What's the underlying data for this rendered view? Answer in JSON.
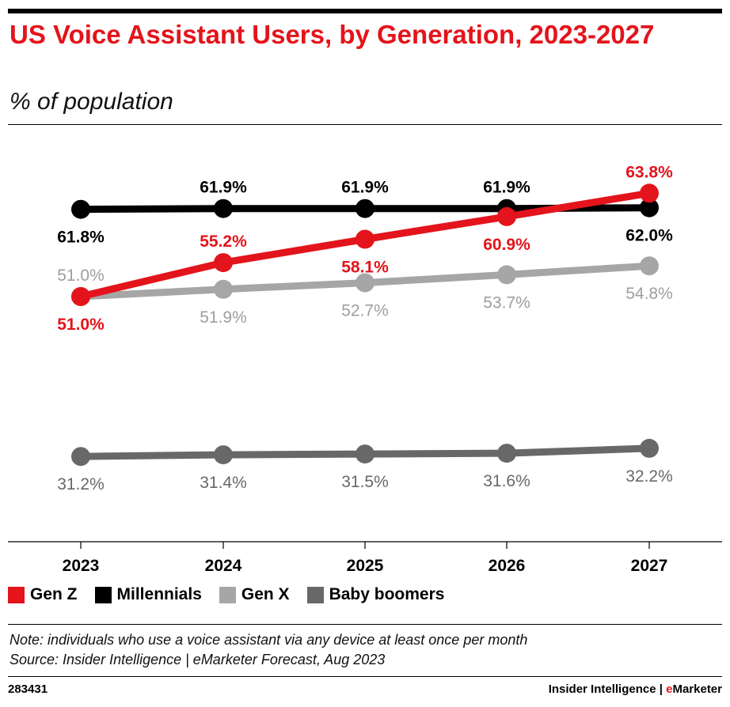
{
  "header": {
    "title": "US Voice Assistant Users, by Generation, 2023-2027",
    "subtitle": "% of population"
  },
  "chart_data": {
    "type": "line",
    "title": "US Voice Assistant Users, by Generation, 2023-2027",
    "subtitle": "% of population",
    "categories": [
      "2023",
      "2024",
      "2025",
      "2026",
      "2027"
    ],
    "ylim": [
      25,
      68
    ],
    "grid": false,
    "legend_position": "bottom-left",
    "series": [
      {
        "name": "Gen Z",
        "color": "#e3141b",
        "values": [
          51.0,
          55.2,
          58.1,
          60.9,
          63.8
        ],
        "labels": [
          "51.0%",
          "55.2%",
          "58.1%",
          "60.9%",
          "63.8%"
        ]
      },
      {
        "name": "Millennials",
        "color": "#000000",
        "values": [
          61.8,
          61.9,
          61.9,
          61.9,
          62.0
        ],
        "labels": [
          "61.8%",
          "61.9%",
          "61.9%",
          "61.9%",
          "62.0%"
        ]
      },
      {
        "name": "Gen X",
        "color": "#a6a6a6",
        "values": [
          51.0,
          51.9,
          52.7,
          53.7,
          54.8
        ],
        "labels": [
          "51.0%",
          "51.9%",
          "52.7%",
          "53.7%",
          "54.8%"
        ]
      },
      {
        "name": "Baby boomers",
        "color": "#686868",
        "values": [
          31.2,
          31.4,
          31.5,
          31.6,
          32.2
        ],
        "labels": [
          "31.2%",
          "31.4%",
          "31.5%",
          "31.6%",
          "32.2%"
        ]
      }
    ]
  },
  "legend": {
    "items": [
      {
        "label": "Gen Z",
        "color": "#e3141b"
      },
      {
        "label": "Millennials",
        "color": "#000000"
      },
      {
        "label": "Gen X",
        "color": "#a6a6a6"
      },
      {
        "label": "Baby boomers",
        "color": "#686868"
      }
    ]
  },
  "notes": {
    "note": "Note: individuals who use a voice assistant via any device at least once per month",
    "source": "Source: Insider Intelligence | eMarketer Forecast, Aug 2023"
  },
  "footer": {
    "chart_id": "283431",
    "brand_left": "Insider Intelligence | ",
    "brand_e": "e",
    "brand_right": "Marketer"
  }
}
